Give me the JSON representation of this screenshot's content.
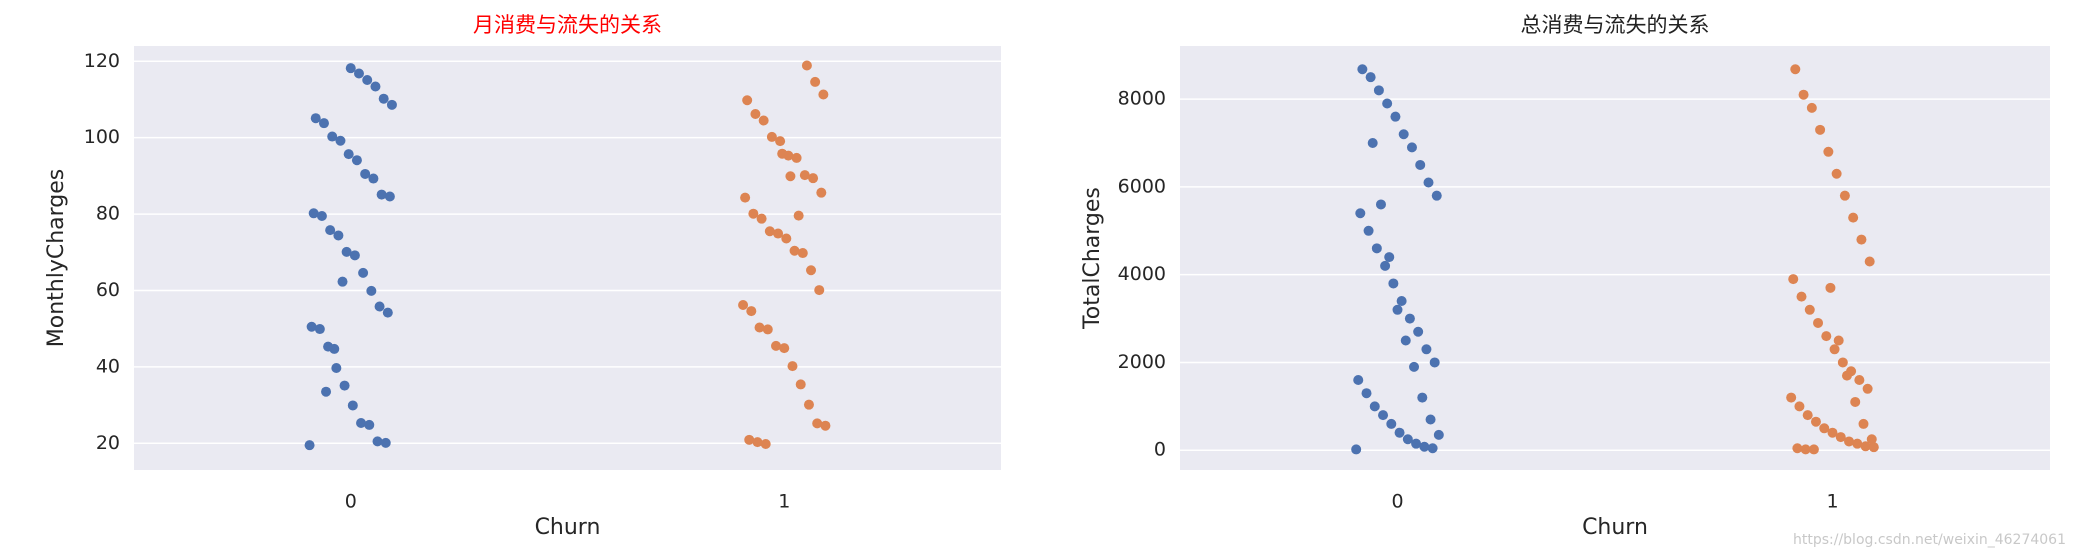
{
  "chart_data": [
    {
      "type": "strip",
      "title": "月消费与流失的关系",
      "title_color": "#ff0000",
      "xlabel": "Churn",
      "ylabel": "MonthlyCharges",
      "categories": [
        "0",
        "1"
      ],
      "colors": [
        "#4c72b0",
        "#dd8452"
      ],
      "values": [
        [
          19.5,
          20.1,
          20.5,
          24.8,
          25.3,
          29.9,
          35.1,
          39.7,
          45.3,
          49.9,
          50.5,
          54.2,
          55.8,
          59.9,
          64.6,
          69.2,
          70.1,
          74.4,
          75.8,
          79.5,
          80.2,
          84.6,
          85.1,
          89.3,
          90.5,
          94.1,
          95.7,
          99.2,
          100.3,
          103.8,
          105.1,
          108.6,
          110.2,
          113.4,
          115.1,
          116.8,
          118.2,
          62.3,
          44.7,
          33.5
        ],
        [
          19.8,
          20.3,
          20.9,
          24.6,
          25.2,
          30.1,
          35.4,
          40.2,
          44.9,
          45.5,
          49.8,
          50.3,
          54.6,
          56.2,
          60.1,
          65.3,
          69.8,
          70.4,
          73.6,
          74.9,
          75.5,
          78.8,
          80.1,
          84.3,
          85.6,
          89.4,
          90.2,
          94.7,
          95.3,
          99.1,
          100.2,
          104.5,
          106.2,
          109.8,
          111.3,
          114.6,
          118.9,
          79.6,
          89.9,
          95.8
        ]
      ],
      "ylim": [
        13,
        124
      ],
      "yticks": [
        20,
        40,
        60,
        80,
        100,
        120
      ],
      "grid": true
    },
    {
      "type": "strip",
      "title": "总消费与流失的关系",
      "title_color": "#222222",
      "xlabel": "Churn",
      "ylabel": "TotalCharges",
      "categories": [
        "0",
        "1"
      ],
      "colors": [
        "#4c72b0",
        "#dd8452"
      ],
      "values": [
        [
          19,
          45,
          80,
          150,
          250,
          400,
          600,
          800,
          1000,
          1300,
          1600,
          2000,
          2300,
          2700,
          3000,
          3400,
          3800,
          4200,
          4600,
          5000,
          5400,
          5800,
          6100,
          6500,
          6900,
          7200,
          7600,
          7900,
          8200,
          8500,
          8680,
          350,
          700,
          1200,
          1900,
          2500,
          3200,
          4400,
          5600,
          7000
        ],
        [
          19,
          20,
          45,
          70,
          90,
          150,
          200,
          300,
          400,
          500,
          650,
          800,
          1000,
          1200,
          1400,
          1600,
          1800,
          2000,
          2300,
          2600,
          2900,
          3200,
          3500,
          3900,
          4300,
          4800,
          5300,
          5800,
          6300,
          6800,
          7300,
          7800,
          8100,
          8680,
          250,
          600,
          1100,
          1700,
          2500,
          3700
        ]
      ],
      "ylim": [
        -450,
        9210
      ],
      "yticks": [
        0,
        2000,
        4000,
        6000,
        8000
      ],
      "grid": true
    }
  ],
  "watermark": "https://blog.csdn.net/weixin_46274061"
}
